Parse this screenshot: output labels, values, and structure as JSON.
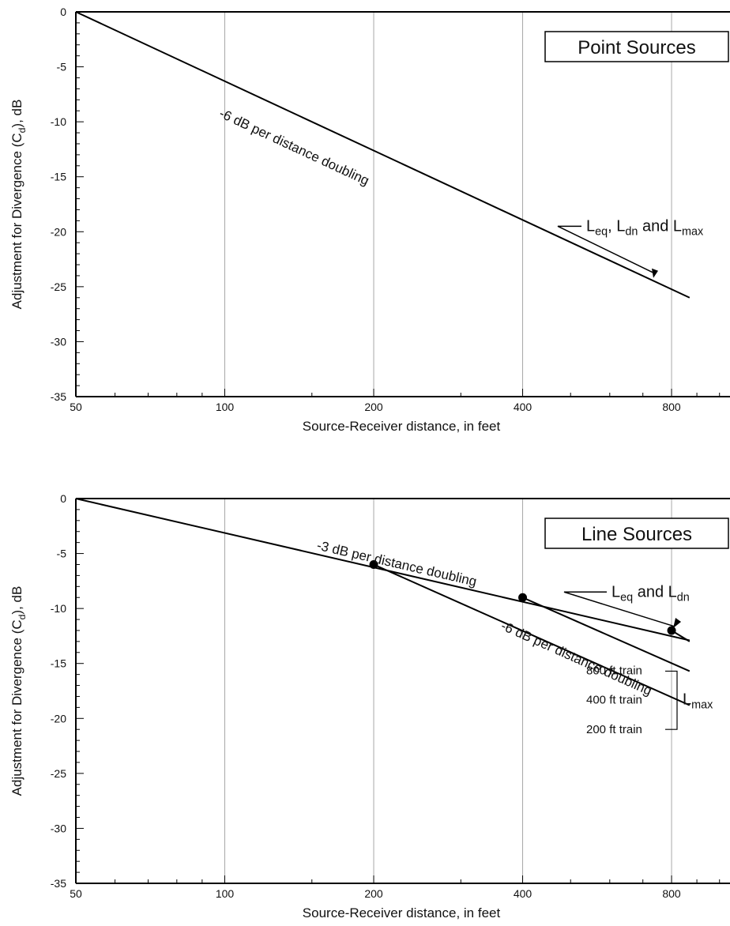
{
  "chart_data": [
    {
      "type": "line",
      "title": "Point Sources",
      "xlabel": "Source-Receiver distance, in feet",
      "ylabel": "Adjustment for Divergence (Cd), dB",
      "ylabel_parts": {
        "before": "Adjustment for Divergence (C",
        "sub": "d",
        "after": "), dB"
      },
      "x_scale": "log",
      "xlim": [
        50,
        1050
      ],
      "ylim": [
        -35,
        0
      ],
      "x_ticks": [
        50,
        100,
        200,
        400,
        800
      ],
      "x_tick_labels": [
        "50",
        "100",
        "200",
        "400",
        "800"
      ],
      "y_ticks": [
        0,
        -5,
        -10,
        -15,
        -20,
        -25,
        -30,
        -35
      ],
      "y_tick_labels": [
        "0",
        "-5",
        "-10",
        "-15",
        "-20",
        "-25",
        "-30",
        "-35"
      ],
      "grid": "vertical lines at major x ticks",
      "series": [
        {
          "x": [
            50,
            870
          ],
          "y": [
            0,
            -26
          ]
        }
      ],
      "annotations": {
        "slope_label": "-6 dB per distance doubling",
        "metric_label": {
          "text": "Leq, Ldn and Lmax",
          "parts": [
            {
              "t": "L"
            },
            {
              "t": "eq",
              "sub": true
            },
            {
              "t": ", L"
            },
            {
              "t": "dn",
              "sub": true
            },
            {
              "t": " and L"
            },
            {
              "t": "max",
              "sub": true
            }
          ],
          "points_to": {
            "x": 735,
            "y": -24.2
          }
        }
      }
    },
    {
      "type": "line",
      "title": "Line Sources",
      "xlabel": "Source-Receiver distance, in feet",
      "ylabel": "Adjustment for Divergence (Cd), dB",
      "ylabel_parts": {
        "before": "Adjustment for Divergence (C",
        "sub": "d",
        "after": "), dB"
      },
      "x_scale": "log",
      "xlim": [
        50,
        1050
      ],
      "ylim": [
        -35,
        0
      ],
      "x_ticks": [
        50,
        100,
        200,
        400,
        800
      ],
      "x_tick_labels": [
        "50",
        "100",
        "200",
        "400",
        "800"
      ],
      "y_ticks": [
        0,
        -5,
        -10,
        -15,
        -20,
        -25,
        -30,
        -35
      ],
      "y_tick_labels": [
        "0",
        "-5",
        "-10",
        "-15",
        "-20",
        "-25",
        "-30",
        "-35"
      ],
      "grid": "vertical lines at major x ticks",
      "series": [
        {
          "x": [
            50,
            870
          ],
          "y": [
            0,
            -12.9
          ]
        },
        {
          "x": [
            200,
            870
          ],
          "y": [
            -6,
            -18.8
          ]
        },
        {
          "x": [
            400,
            870
          ],
          "y": [
            -9,
            -15.7
          ]
        },
        {
          "x": [
            800,
            870
          ],
          "y": [
            -12,
            -13
          ]
        }
      ],
      "markers": [
        {
          "x": 200,
          "y": -6
        },
        {
          "x": 400,
          "y": -9
        },
        {
          "x": 800,
          "y": -12
        }
      ],
      "annotations": {
        "slope_label_3": "-3 dB per distance doubling",
        "slope_label_6": "-6 dB per distance doubling",
        "metric_label": {
          "text": "Leq and Ldn",
          "parts": [
            {
              "t": "L"
            },
            {
              "t": "eq",
              "sub": true
            },
            {
              "t": " and L"
            },
            {
              "t": "dn",
              "sub": true
            }
          ],
          "points_to": {
            "x": 800,
            "y": -12
          }
        },
        "train_labels": [
          "800 ft train",
          "400 ft train",
          "200 ft train"
        ],
        "lmax_label": {
          "text": "Lmax",
          "parts": [
            {
              "t": "L"
            },
            {
              "t": "max",
              "sub": true
            }
          ]
        }
      }
    }
  ]
}
